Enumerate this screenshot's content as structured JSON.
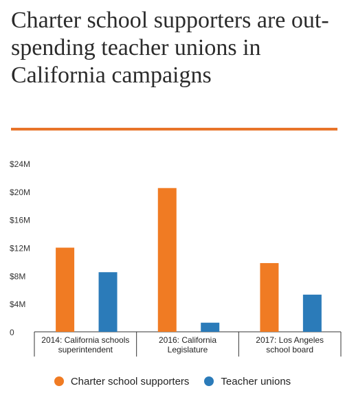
{
  "title": "Charter school supporters are out-spending teacher unions in California campaigns",
  "colors": {
    "accent_rule": "#e8742a",
    "charter": "#f07b23",
    "unions": "#2b7bb9"
  },
  "chart_data": {
    "type": "bar",
    "categories": [
      [
        "2014: California schools",
        "superintendent"
      ],
      [
        "2016: California",
        "Legislature"
      ],
      [
        "2017: Los Angeles",
        "school board"
      ]
    ],
    "series": [
      {
        "name": "Charter school supporters",
        "values": [
          12.0,
          20.5,
          9.8
        ]
      },
      {
        "name": "Teacher unions",
        "values": [
          8.5,
          1.3,
          5.3
        ]
      }
    ],
    "yticks": [
      "$24M",
      "$20M",
      "$16M",
      "$12M",
      "$8M",
      "$4M",
      "0"
    ],
    "ylim": [
      0,
      24
    ],
    "grid": false,
    "legend_position": "bottom"
  }
}
